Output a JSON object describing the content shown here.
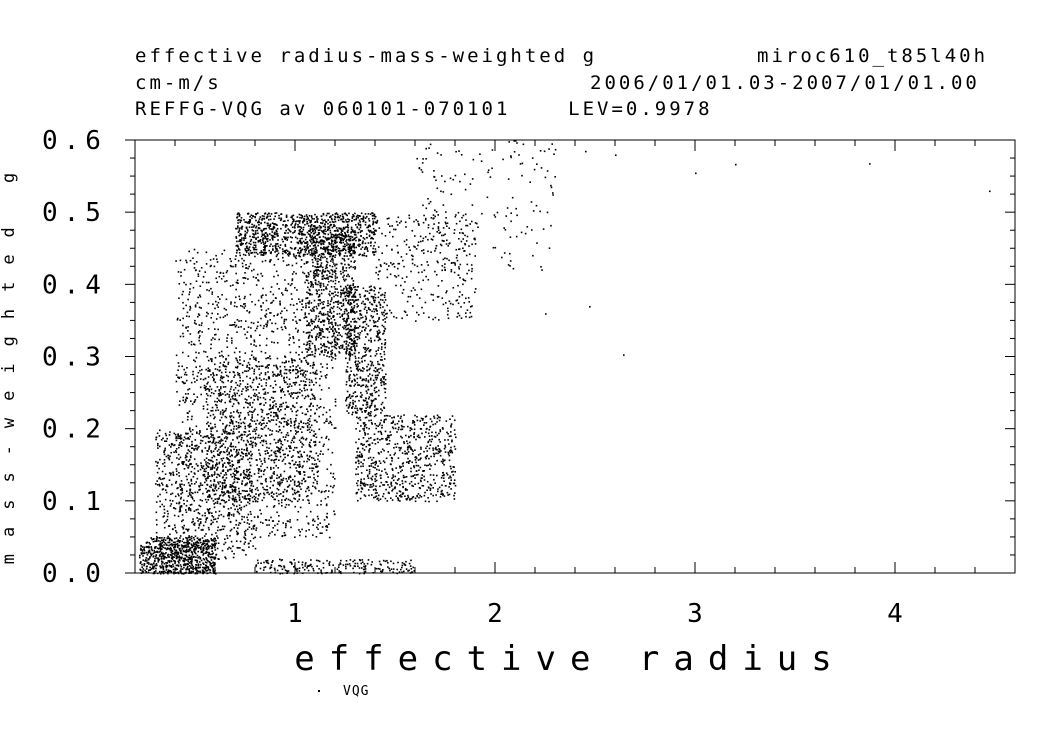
{
  "header": {
    "line1_left": "effective radius-mass-weighted g",
    "line1_right": "miroc610_t85l40h",
    "line2_left": "cm-m/s",
    "line2_right": "2006/01/01.03-2007/01/01.00",
    "line3": "REFFG-VQG av 060101-070101    LEV=0.9978"
  },
  "chart_data": {
    "type": "scatter",
    "xlabel": "effective radius",
    "ylabel": "mass-weighted g",
    "xlim": [
      0.2,
      4.6
    ],
    "ylim": [
      0.0,
      0.6
    ],
    "x_ticks": [
      "1",
      "2",
      "3",
      "4"
    ],
    "x_tick_values": [
      1,
      2,
      3,
      4
    ],
    "y_ticks": [
      "0.0",
      "0.1",
      "0.2",
      "0.3",
      "0.4",
      "0.5",
      "0.6"
    ],
    "y_tick_values": [
      0.0,
      0.1,
      0.2,
      0.3,
      0.4,
      0.5,
      0.6
    ],
    "grid": false,
    "legend": "bottom-left",
    "series": [
      {
        "name": "VQG",
        "marker": "dot",
        "color": "#000000",
        "clusters": [
          {
            "x": [
              0.22,
              0.6
            ],
            "y": [
              0.0,
              0.05
            ],
            "count": 700
          },
          {
            "x": [
              0.3,
              0.8
            ],
            "y": [
              0.02,
              0.2
            ],
            "count": 650
          },
          {
            "x": [
              0.4,
              1.2
            ],
            "y": [
              0.05,
              0.45
            ],
            "count": 1500
          },
          {
            "x": [
              0.55,
              1.1
            ],
            "y": [
              0.1,
              0.3
            ],
            "count": 900
          },
          {
            "x": [
              0.7,
              1.4
            ],
            "y": [
              0.44,
              0.5
            ],
            "count": 1000
          },
          {
            "x": [
              1.05,
              1.3
            ],
            "y": [
              0.3,
              0.48
            ],
            "count": 700
          },
          {
            "x": [
              1.25,
              1.45
            ],
            "y": [
              0.22,
              0.4
            ],
            "count": 550
          },
          {
            "x": [
              1.3,
              1.8
            ],
            "y": [
              0.1,
              0.22
            ],
            "count": 700
          },
          {
            "x": [
              1.4,
              1.9
            ],
            "y": [
              0.35,
              0.5
            ],
            "count": 300
          },
          {
            "x": [
              1.6,
              2.3
            ],
            "y": [
              0.42,
              0.6
            ],
            "count": 160
          },
          {
            "x": [
              0.8,
              1.6
            ],
            "y": [
              0.0,
              0.02
            ],
            "count": 200
          }
        ],
        "outliers": [
          {
            "x": 2.45,
            "y": 0.585
          },
          {
            "x": 2.6,
            "y": 0.58
          },
          {
            "x": 3.0,
            "y": 0.555
          },
          {
            "x": 3.2,
            "y": 0.567
          },
          {
            "x": 3.87,
            "y": 0.568
          },
          {
            "x": 4.47,
            "y": 0.53
          },
          {
            "x": 2.64,
            "y": 0.303
          },
          {
            "x": 2.25,
            "y": 0.36
          },
          {
            "x": 2.47,
            "y": 0.37
          }
        ]
      }
    ]
  }
}
